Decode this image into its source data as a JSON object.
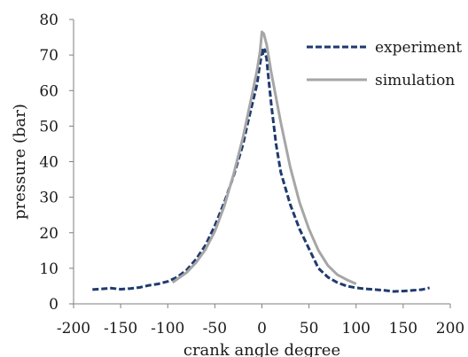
{
  "chart_data": {
    "type": "line",
    "xlabel": "crank angle degree",
    "ylabel": "pressure (bar)",
    "xlim": [
      -200,
      200
    ],
    "ylim": [
      0,
      80
    ],
    "xticks": [
      -200,
      -150,
      -100,
      -50,
      0,
      50,
      100,
      150,
      200
    ],
    "yticks": [
      0,
      10,
      20,
      30,
      40,
      50,
      60,
      70,
      80
    ],
    "grid": false,
    "legend_position": "top-right",
    "series": [
      {
        "name": "experiment",
        "style": "dashed",
        "color": "#1f3a6e",
        "x": [
          -180,
          -170,
          -160,
          -150,
          -140,
          -130,
          -120,
          -110,
          -100,
          -90,
          -80,
          -70,
          -60,
          -50,
          -40,
          -30,
          -20,
          -15,
          -10,
          -5,
          -3,
          -1,
          0,
          1,
          2,
          3,
          4,
          5,
          6,
          8,
          10,
          15,
          20,
          30,
          40,
          50,
          60,
          70,
          80,
          90,
          100,
          110,
          120,
          130,
          140,
          150,
          160,
          170,
          178
        ],
        "y": [
          4,
          4.2,
          4.4,
          4.1,
          4.3,
          4.6,
          5.2,
          5.6,
          6.3,
          7.5,
          9.5,
          12.5,
          16.5,
          22,
          28.5,
          36,
          45,
          51,
          56.5,
          62,
          66,
          69,
          72,
          70,
          71,
          71.5,
          70,
          69,
          66,
          61,
          56,
          45,
          37,
          28,
          21,
          15.5,
          10,
          7.5,
          6,
          5,
          4.5,
          4.2,
          4,
          3.8,
          3.5,
          3.6,
          3.8,
          4,
          4.5
        ]
      },
      {
        "name": "simulation",
        "style": "solid",
        "color": "#a6a6a6",
        "x": [
          -95,
          -80,
          -70,
          -60,
          -50,
          -40,
          -30,
          -20,
          -10,
          -5,
          -2,
          0,
          2,
          5,
          10,
          20,
          30,
          40,
          50,
          60,
          70,
          80,
          90,
          100
        ],
        "y": [
          6,
          8.8,
          11.6,
          15.3,
          20.4,
          27.5,
          36.5,
          47,
          59.5,
          66,
          71,
          76.5,
          76,
          73,
          65,
          51,
          38.5,
          28.5,
          21,
          15,
          10.8,
          8.2,
          6.8,
          5.6
        ]
      }
    ]
  }
}
